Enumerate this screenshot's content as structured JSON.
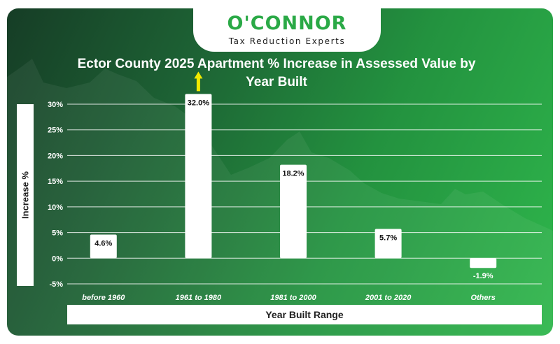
{
  "brand": {
    "name": "O'CONNOR",
    "tagline": "Tax Reduction Experts"
  },
  "colors": {
    "accent": "#2aa946",
    "arrow": "#f2ea00",
    "bar": "#ffffff",
    "grid": "#ffffff"
  },
  "chart_data": {
    "type": "bar",
    "title": "Ector County 2025 Apartment % Increase in Assessed Value by Year Built",
    "xlabel": "Year Built Range",
    "ylabel": "Increase %",
    "categories": [
      "before 1960",
      "1961 to 1980",
      "1981 to 2000",
      "2001 to 2020",
      "Others"
    ],
    "values": [
      4.6,
      32.0,
      18.2,
      5.7,
      -1.9
    ],
    "value_labels": [
      "4.6%",
      "32.0%",
      "18.2%",
      "5.7%",
      "-1.9%"
    ],
    "ylim": [
      -5,
      30
    ],
    "yticks": [
      30,
      25,
      20,
      15,
      10,
      5,
      0,
      -5
    ],
    "ytick_labels": [
      "30%",
      "25%",
      "20%",
      "15%",
      "10%",
      "5%",
      "0%",
      "-5%"
    ],
    "highlight_index": 1,
    "grid": true,
    "legend": "none"
  }
}
